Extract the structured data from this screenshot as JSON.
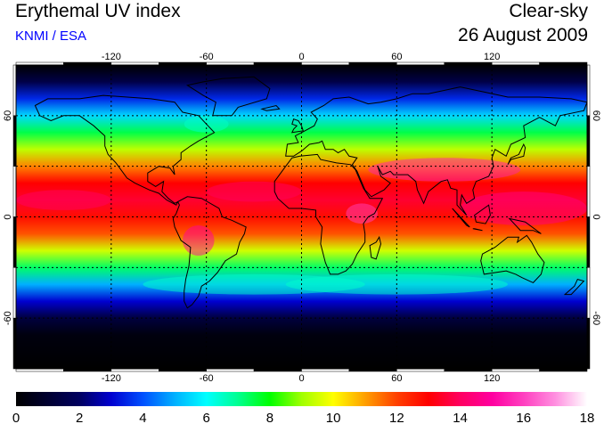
{
  "header": {
    "title": "Erythemal UV index",
    "credit": "KNMI / ESA",
    "mode": "Clear-sky",
    "date": "26 August 2009"
  },
  "colors": {
    "credit": "#0000ff",
    "frame": "#000000",
    "grid": "#000000"
  },
  "map": {
    "lon_range": [
      -180,
      180
    ],
    "lat_range": [
      -90,
      90
    ],
    "lon_ticks": [
      -120,
      -60,
      0,
      60,
      120
    ],
    "lat_ticks": [
      60,
      0,
      -60
    ],
    "grid_lon": [
      -120,
      -60,
      0,
      60,
      120
    ],
    "grid_lat": [
      60,
      30,
      0,
      -30,
      -60
    ],
    "tick_labels_lon": [
      "-120",
      "-60",
      "0",
      "60",
      "120"
    ],
    "tick_labels_lat": [
      "60",
      "0",
      "-60"
    ]
  },
  "colorbar": {
    "min": 0,
    "max": 18,
    "tick_labels": [
      "0",
      "2",
      "4",
      "6",
      "8",
      "10",
      "12",
      "14",
      "16",
      "18"
    ],
    "stops": [
      {
        "value": 0,
        "color": "#000000"
      },
      {
        "value": 2,
        "color": "#000060"
      },
      {
        "value": 3,
        "color": "#0000d0"
      },
      {
        "value": 4,
        "color": "#0050ff"
      },
      {
        "value": 5,
        "color": "#00b0ff"
      },
      {
        "value": 6,
        "color": "#00ffff"
      },
      {
        "value": 7,
        "color": "#00ff90"
      },
      {
        "value": 8,
        "color": "#00ff00"
      },
      {
        "value": 9,
        "color": "#a0ff00"
      },
      {
        "value": 10,
        "color": "#ffff00"
      },
      {
        "value": 11,
        "color": "#ffa000"
      },
      {
        "value": 12,
        "color": "#ff4000"
      },
      {
        "value": 13,
        "color": "#ff0000"
      },
      {
        "value": 14,
        "color": "#ff0060"
      },
      {
        "value": 15,
        "color": "#ff00a0"
      },
      {
        "value": 16,
        "color": "#ff40c0"
      },
      {
        "value": 17,
        "color": "#ff90e0"
      },
      {
        "value": 18,
        "color": "#ffffff"
      }
    ]
  },
  "uv_zonal_profile": [
    {
      "lat": 90,
      "uv": 0
    },
    {
      "lat": 80,
      "uv": 1.5
    },
    {
      "lat": 70,
      "uv": 3.5
    },
    {
      "lat": 60,
      "uv": 5.5
    },
    {
      "lat": 50,
      "uv": 7.5
    },
    {
      "lat": 40,
      "uv": 9.3
    },
    {
      "lat": 30,
      "uv": 11.3
    },
    {
      "lat": 20,
      "uv": 13
    },
    {
      "lat": 10,
      "uv": 13.5
    },
    {
      "lat": 0,
      "uv": 12.8
    },
    {
      "lat": -10,
      "uv": 11.8
    },
    {
      "lat": -20,
      "uv": 9.5
    },
    {
      "lat": -30,
      "uv": 7.3
    },
    {
      "lat": -40,
      "uv": 5
    },
    {
      "lat": -50,
      "uv": 3
    },
    {
      "lat": -60,
      "uv": 1.3
    },
    {
      "lat": -70,
      "uv": 0.3
    },
    {
      "lat": -90,
      "uv": 0
    }
  ]
}
